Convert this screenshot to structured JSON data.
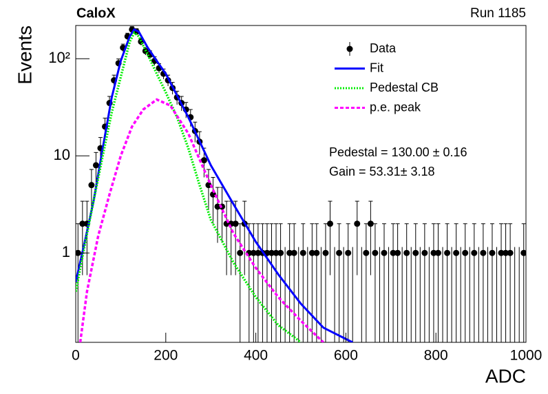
{
  "chart_data": {
    "type": "errorbar",
    "title": "CaloX",
    "subtitle": "Run 1185",
    "x_label": "ADC",
    "y_label": "Events",
    "annotations": [
      "Pedestal = 130.00 ± 0.16",
      "Gain = 53.31± 3.18"
    ],
    "log_y": true,
    "legend": "upper right",
    "xlim": [
      0,
      1000
    ],
    "xticks": [
      0,
      200,
      400,
      600,
      800,
      1000
    ],
    "ylim": [
      0.12,
      220
    ],
    "yticks": [
      1,
      10,
      {
        "value": 100,
        "label": "10²"
      }
    ],
    "series": [
      {
        "name": "Data",
        "color": "#000000",
        "type": "errorbar",
        "x": [
          5,
          15,
          25,
          35,
          45,
          55,
          65,
          75,
          85,
          95,
          105,
          115,
          125,
          135,
          145,
          155,
          165,
          175,
          185,
          195,
          205,
          215,
          225,
          235,
          245,
          255,
          265,
          275,
          285,
          295,
          305,
          315,
          325,
          335,
          345,
          355,
          365,
          375,
          385,
          395,
          405,
          415,
          425,
          435,
          445,
          455,
          465,
          475,
          485,
          495,
          505,
          515,
          525,
          535,
          545,
          555,
          565,
          575,
          585,
          595,
          605,
          615,
          625,
          635,
          645,
          655,
          665,
          675,
          685,
          695,
          705,
          715,
          725,
          735,
          745,
          755,
          765,
          775,
          785,
          795,
          805,
          815,
          825,
          835,
          845,
          855,
          865,
          875,
          885,
          895,
          905,
          915,
          925,
          935,
          945,
          955,
          965,
          975,
          985,
          995
        ],
        "values": [
          1,
          2,
          2,
          5,
          8,
          12,
          20,
          35,
          60,
          90,
          130,
          170,
          200,
          190,
          150,
          120,
          110,
          95,
          80,
          70,
          60,
          50,
          40,
          35,
          30,
          25,
          18,
          14,
          9,
          5,
          4,
          3,
          3,
          2,
          2,
          2,
          1,
          2,
          1,
          1,
          1,
          1,
          1,
          1,
          1,
          1,
          0,
          1,
          1,
          0,
          1,
          0,
          1,
          1,
          0,
          1,
          2,
          0,
          1,
          0,
          1,
          0,
          2,
          0,
          1,
          2,
          1,
          0,
          1,
          0,
          1,
          1,
          0,
          1,
          0,
          1,
          0,
          1,
          0,
          1,
          1,
          0,
          1,
          0,
          1,
          0,
          1,
          0,
          1,
          0,
          1,
          0,
          1,
          0,
          1,
          1,
          1,
          0,
          0,
          1
        ],
        "errors": [
          1,
          1.41,
          1.41,
          2.24,
          2.83,
          3.46,
          4.47,
          5.92,
          7.75,
          9.49,
          11.4,
          13.04,
          14.14,
          13.78,
          12.25,
          10.95,
          10.49,
          9.75,
          8.94,
          8.37,
          7.75,
          7.07,
          6.32,
          5.92,
          5.48,
          5,
          4.24,
          3.74,
          3,
          2.24,
          2,
          1.73,
          1.73,
          1.41,
          1.41,
          1.41,
          1,
          1.41,
          1,
          1,
          1,
          1,
          1,
          1,
          1,
          1,
          1.15,
          1,
          1,
          1.15,
          1,
          1.15,
          1,
          1,
          1.15,
          1,
          1.41,
          1.15,
          1,
          1.15,
          1,
          1.15,
          1.41,
          1.15,
          1,
          1.41,
          1,
          1.15,
          1,
          1.15,
          1,
          1,
          1.15,
          1,
          1.15,
          1,
          1.15,
          1,
          1.15,
          1,
          1,
          1.15,
          1,
          1.15,
          1,
          1.15,
          1,
          1.15,
          1,
          1.15,
          1,
          1.15,
          1,
          1.15,
          1,
          1,
          1,
          1.15,
          1.15,
          1
        ]
      },
      {
        "name": "Fit",
        "color": "#0000ff",
        "type": "line",
        "style": "solid",
        "x": [
          0,
          20,
          40,
          60,
          80,
          100,
          120,
          130,
          140,
          160,
          180,
          200,
          250,
          300,
          350,
          400,
          450,
          500,
          550,
          600,
          615
        ],
        "values": [
          0.5,
          1.3,
          3.5,
          12,
          40,
          95,
          170,
          200,
          190,
          130,
          95,
          70,
          25,
          8,
          3.2,
          1.3,
          0.6,
          0.3,
          0.17,
          0.13,
          0.12
        ]
      },
      {
        "name": "Pedestal CB",
        "color": "#00ee00",
        "type": "line",
        "style": "dotted",
        "x": [
          0,
          20,
          40,
          60,
          80,
          100,
          120,
          130,
          140,
          160,
          180,
          200,
          225,
          250,
          275,
          300,
          350,
          400,
          450,
          500
        ],
        "values": [
          0.4,
          1.2,
          3.5,
          10,
          28,
          65,
          150,
          185,
          170,
          110,
          70,
          45,
          25,
          12,
          5,
          2.2,
          0.8,
          0.35,
          0.18,
          0.12
        ]
      },
      {
        "name": "p.e. peak",
        "color": "#ff00ff",
        "type": "line",
        "style": "dashed",
        "x": [
          10,
          25,
          50,
          75,
          100,
          125,
          150,
          180,
          210,
          250,
          300,
          350,
          400,
          450,
          500,
          550
        ],
        "values": [
          0.12,
          0.4,
          1.5,
          4,
          10,
          20,
          30,
          38,
          33,
          17,
          5,
          1.6,
          0.7,
          0.35,
          0.2,
          0.12
        ]
      }
    ]
  }
}
